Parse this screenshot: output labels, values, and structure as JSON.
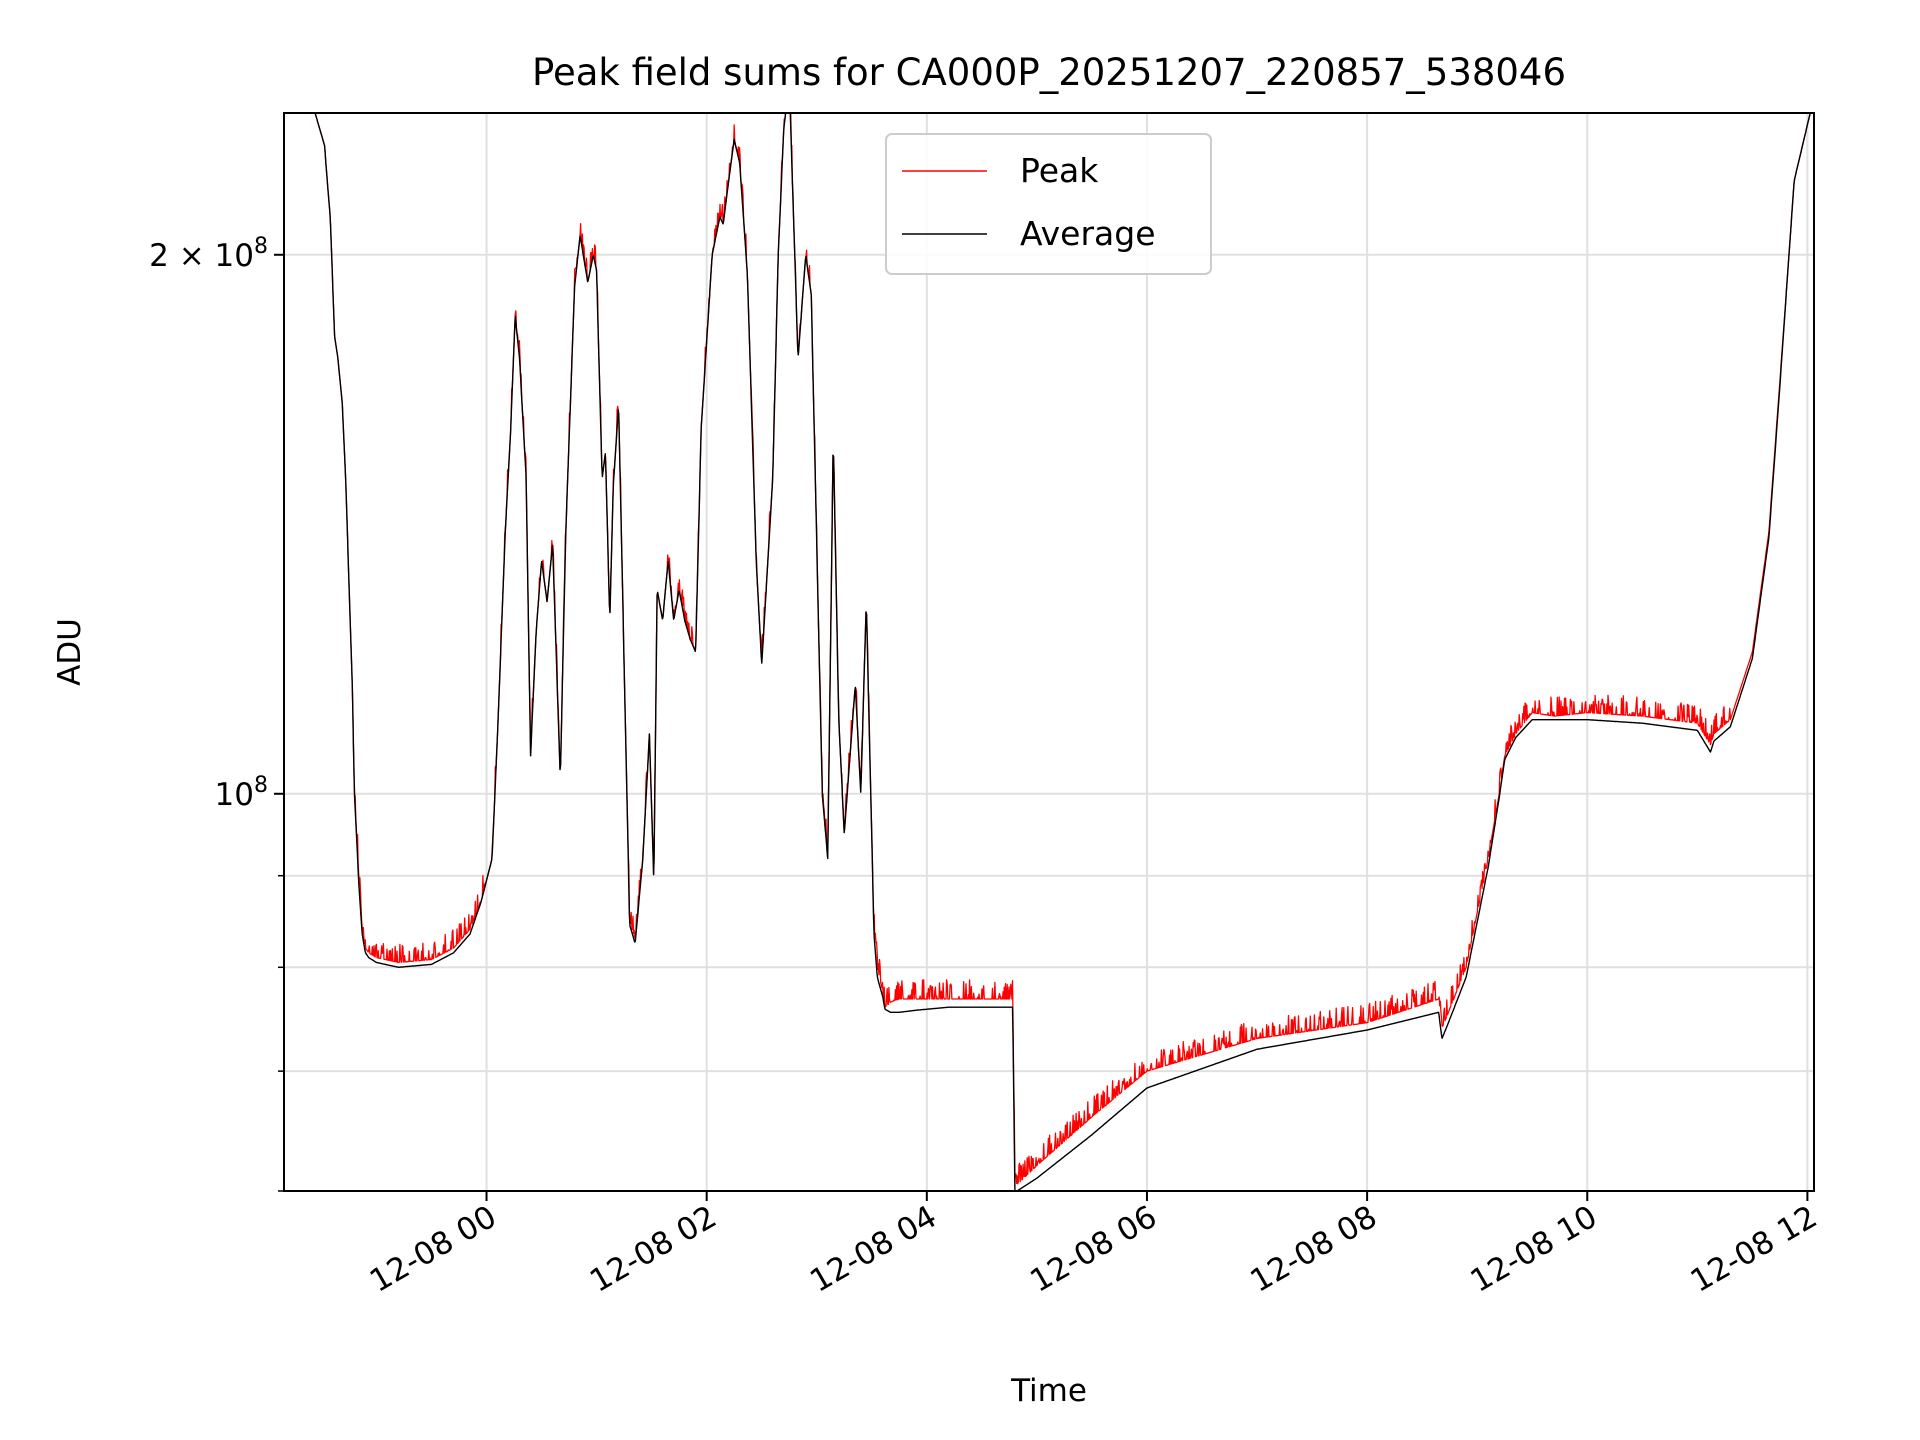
{
  "chart_data": {
    "type": "line",
    "title": "Peak field sums for CA000P_20251207_220857_538046",
    "xlabel": "Time",
    "ylabel": "ADU",
    "yscale": "log",
    "xlim_hours": [
      -1.84,
      12.06
    ],
    "ylim": [
      60000000,
      240000000
    ],
    "grid": true,
    "legend_loc": "upper center",
    "x_ticks": [
      {
        "hours": 0,
        "label": "12-08 00"
      },
      {
        "hours": 2,
        "label": "12-08 02"
      },
      {
        "hours": 4,
        "label": "12-08 04"
      },
      {
        "hours": 6,
        "label": "12-08 06"
      },
      {
        "hours": 8,
        "label": "12-08 08"
      },
      {
        "hours": 10,
        "label": "12-08 10"
      },
      {
        "hours": 12,
        "label": "12-08 12"
      }
    ],
    "y_major_ticks": [
      {
        "value": 100000000,
        "base": "10",
        "exp": "8"
      },
      {
        "value": 200000000,
        "base": "2 × 10",
        "exp": "8"
      }
    ],
    "y_minor_ticks": [
      60000000,
      70000000,
      80000000,
      90000000
    ],
    "series": [
      {
        "name": "Peak",
        "color": "#ff0000",
        "jitter": true,
        "x_hours": [
          -1.84,
          -1.6,
          -1.47,
          -1.46,
          -1.42,
          -1.38,
          -1.35,
          -1.31,
          -1.28,
          -1.22,
          -1.2,
          -1.16,
          -1.13,
          -1.1,
          -1.07,
          -1.0,
          -0.8,
          -0.5,
          -0.3,
          -0.15,
          -0.05,
          0.05,
          0.1,
          0.17,
          0.22,
          0.26,
          0.3,
          0.36,
          0.4,
          0.45,
          0.5,
          0.55,
          0.6,
          0.67,
          0.72,
          0.8,
          0.85,
          0.92,
          0.97,
          1.0,
          1.05,
          1.08,
          1.12,
          1.15,
          1.2,
          1.23,
          1.3,
          1.35,
          1.42,
          1.48,
          1.52,
          1.55,
          1.6,
          1.65,
          1.7,
          1.75,
          1.8,
          1.85,
          1.9,
          1.95,
          2.05,
          2.12,
          2.15,
          2.2,
          2.25,
          2.3,
          2.37,
          2.45,
          2.5,
          2.6,
          2.65,
          2.7,
          2.75,
          2.83,
          2.9,
          2.95,
          3.05,
          3.1,
          3.15,
          3.2,
          3.25,
          3.35,
          3.4,
          3.45,
          3.52,
          3.55,
          3.6,
          3.62,
          3.67,
          3.75,
          3.9,
          4.2,
          4.5,
          4.78,
          4.8,
          4.82,
          5.0,
          5.5,
          6.0,
          7.0,
          8.0,
          8.65,
          8.68,
          8.72,
          8.9,
          9.1,
          9.2,
          9.25,
          9.35,
          9.5,
          9.7,
          10.0,
          10.5,
          11.0,
          11.12,
          11.15,
          11.3,
          11.5,
          11.65,
          11.75,
          11.82,
          11.88,
          12.06
        ],
        "values": [
          245000000,
          245000000,
          230000000,
          225000000,
          210000000,
          180000000,
          175000000,
          165000000,
          150000000,
          115000000,
          100000000,
          90000000,
          84000000,
          82000000,
          81500000,
          81000000,
          80500000,
          80800000,
          82000000,
          84000000,
          87000000,
          92000000,
          108000000,
          140000000,
          160000000,
          185000000,
          175000000,
          150000000,
          105000000,
          123000000,
          135000000,
          128000000,
          138000000,
          102000000,
          140000000,
          192000000,
          205000000,
          193000000,
          200000000,
          196000000,
          150000000,
          155000000,
          125000000,
          148000000,
          165000000,
          135000000,
          85000000,
          83000000,
          92000000,
          108000000,
          89000000,
          130000000,
          125000000,
          135000000,
          125000000,
          130000000,
          125000000,
          122000000,
          120000000,
          160000000,
          200000000,
          210000000,
          208000000,
          220000000,
          232000000,
          225000000,
          195000000,
          135000000,
          118000000,
          150000000,
          200000000,
          235000000,
          250000000,
          175000000,
          200000000,
          190000000,
          100000000,
          92000000,
          158000000,
          110000000,
          95000000,
          115000000,
          100000000,
          128000000,
          84000000,
          80000000,
          77500000,
          76000000,
          76500000,
          76800000,
          76800000,
          76800000,
          76800000,
          76800000,
          61000000,
          60500000,
          62000000,
          66000000,
          70000000,
          73000000,
          74500000,
          76800000,
          74000000,
          75000000,
          80000000,
          92000000,
          100000000,
          105000000,
          108000000,
          111000000,
          110500000,
          111000000,
          110500000,
          109500000,
          106500000,
          108000000,
          110000000,
          120000000,
          140000000,
          170000000,
          195000000,
          220000000,
          245000000
        ]
      },
      {
        "name": "Average",
        "color": "#000000",
        "jitter": false,
        "x_hours": [
          -1.84,
          -1.6,
          -1.47,
          -1.46,
          -1.42,
          -1.38,
          -1.35,
          -1.31,
          -1.28,
          -1.22,
          -1.2,
          -1.16,
          -1.13,
          -1.1,
          -1.07,
          -1.0,
          -0.8,
          -0.5,
          -0.3,
          -0.15,
          -0.05,
          0.05,
          0.1,
          0.17,
          0.22,
          0.26,
          0.3,
          0.36,
          0.4,
          0.45,
          0.5,
          0.55,
          0.6,
          0.67,
          0.72,
          0.8,
          0.85,
          0.92,
          0.97,
          1.0,
          1.05,
          1.08,
          1.12,
          1.15,
          1.2,
          1.23,
          1.3,
          1.35,
          1.42,
          1.48,
          1.52,
          1.55,
          1.6,
          1.65,
          1.7,
          1.75,
          1.8,
          1.85,
          1.9,
          1.95,
          2.05,
          2.12,
          2.15,
          2.2,
          2.25,
          2.3,
          2.37,
          2.45,
          2.5,
          2.6,
          2.65,
          2.7,
          2.75,
          2.83,
          2.9,
          2.95,
          3.05,
          3.1,
          3.15,
          3.2,
          3.25,
          3.35,
          3.4,
          3.45,
          3.52,
          3.55,
          3.6,
          3.62,
          3.67,
          3.75,
          3.9,
          4.2,
          4.5,
          4.78,
          4.8,
          4.82,
          5.0,
          5.5,
          6.0,
          7.0,
          8.0,
          8.65,
          8.68,
          8.72,
          8.9,
          9.1,
          9.2,
          9.25,
          9.35,
          9.5,
          9.7,
          10.0,
          10.5,
          11.0,
          11.12,
          11.15,
          11.3,
          11.5,
          11.65,
          11.75,
          11.82,
          11.88,
          12.06
        ],
        "values": [
          245000000,
          245000000,
          230000000,
          225000000,
          210000000,
          180000000,
          175000000,
          165000000,
          150000000,
          115000000,
          100000000,
          89000000,
          83500000,
          81500000,
          81000000,
          80500000,
          80000000,
          80300000,
          81500000,
          83500000,
          87000000,
          92000000,
          108000000,
          140000000,
          160000000,
          185000000,
          175000000,
          150000000,
          105000000,
          123000000,
          135000000,
          128000000,
          138000000,
          102000000,
          140000000,
          192000000,
          205000000,
          193000000,
          200000000,
          196000000,
          150000000,
          155000000,
          125000000,
          148000000,
          165000000,
          135000000,
          84500000,
          82500000,
          92000000,
          108000000,
          89000000,
          130000000,
          125000000,
          135000000,
          125000000,
          130000000,
          125000000,
          122000000,
          120000000,
          160000000,
          200000000,
          210000000,
          208000000,
          220000000,
          232000000,
          225000000,
          195000000,
          135000000,
          118000000,
          150000000,
          200000000,
          235000000,
          250000000,
          175000000,
          200000000,
          190000000,
          100000000,
          92000000,
          158000000,
          110000000,
          95000000,
          115000000,
          100000000,
          128000000,
          83500000,
          79000000,
          77000000,
          75800000,
          75500000,
          75500000,
          75700000,
          76000000,
          76000000,
          76000000,
          60000000,
          60000000,
          61000000,
          64500000,
          68500000,
          72000000,
          73800000,
          75500000,
          73000000,
          74000000,
          79000000,
          91000000,
          99500000,
          104500000,
          107500000,
          110000000,
          110000000,
          110000000,
          109500000,
          108500000,
          105500000,
          107000000,
          109000000,
          119000000,
          139000000,
          169000000,
          195000000,
          220000000,
          245000000
        ]
      }
    ]
  }
}
